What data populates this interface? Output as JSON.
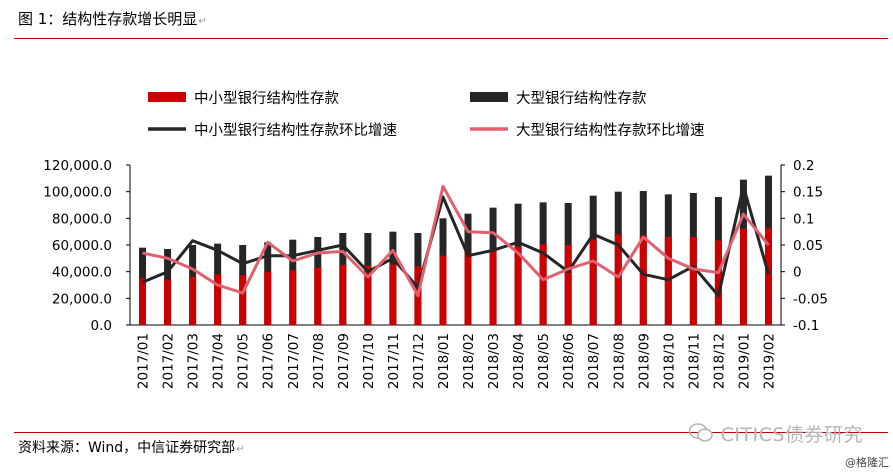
{
  "header": {
    "title": "图 1：结构性存款增长明显"
  },
  "footer": {
    "source": "资料来源：Wind，中信证券研究部",
    "watermark": "CITICS债券研究",
    "brand": "@格隆汇"
  },
  "chart_data": {
    "type": "bar",
    "categories": [
      "2017/01",
      "2017/02",
      "2017/03",
      "2017/04",
      "2017/05",
      "2017/06",
      "2017/07",
      "2017/08",
      "2017/09",
      "2017/10",
      "2017/11",
      "2017/12",
      "2018/01",
      "2018/02",
      "2018/03",
      "2018/04",
      "2018/05",
      "2018/06",
      "2018/07",
      "2018/08",
      "2018/09",
      "2018/10",
      "2018/11",
      "2018/12",
      "2019/01",
      "2019/02"
    ],
    "series": [
      {
        "name": "中小型银行结构性存款",
        "type": "bar",
        "axis": "left",
        "color": "#cc0000",
        "values": [
          35000,
          34000,
          36000,
          38000,
          37500,
          40000,
          41000,
          43000,
          45000,
          44500,
          45500,
          44000,
          52000,
          54000,
          56000,
          59000,
          60500,
          60000,
          64000,
          68000,
          67000,
          66000,
          66000,
          63500,
          72000,
          73000
        ]
      },
      {
        "name": "大型银行结构性存款",
        "type": "bar",
        "axis": "left",
        "color": "#262626",
        "values": [
          58000,
          57000,
          60000,
          61000,
          60000,
          62000,
          64000,
          66000,
          69000,
          69000,
          70000,
          69000,
          80000,
          83500,
          88000,
          91000,
          92000,
          91500,
          97000,
          100000,
          100500,
          98000,
          99000,
          96000,
          109000,
          112000
        ]
      },
      {
        "name": "中小型银行结构性存款环比增速",
        "type": "line",
        "axis": "right",
        "color": "#262626",
        "values": [
          -0.02,
          0.0,
          0.058,
          0.04,
          0.015,
          0.03,
          0.03,
          0.04,
          0.05,
          0.0,
          0.025,
          -0.03,
          0.14,
          0.03,
          0.04,
          0.055,
          0.035,
          0.0,
          0.07,
          0.05,
          -0.005,
          -0.015,
          0.01,
          -0.045,
          0.16,
          -0.005
        ]
      },
      {
        "name": "大型银行结构性存款环比增速",
        "type": "line",
        "axis": "right",
        "color": "#e06070",
        "values": [
          0.035,
          0.025,
          0.005,
          -0.025,
          -0.04,
          0.055,
          0.02,
          0.035,
          0.038,
          -0.01,
          0.04,
          -0.045,
          0.16,
          0.075,
          0.073,
          0.035,
          -0.015,
          0.005,
          0.02,
          -0.01,
          0.065,
          0.025,
          0.005,
          -0.002,
          0.108,
          0.05
        ]
      }
    ],
    "yleft": {
      "min": 0,
      "max": 120000,
      "ticks": [
        "0.0",
        "20,000.0",
        "40,000.0",
        "60,000.0",
        "80,000.0",
        "100,000.0",
        "120,000.0"
      ]
    },
    "yright": {
      "min": -0.1,
      "max": 0.2,
      "ticks": [
        "-0.1",
        "-0.05",
        "0",
        "0.05",
        "0.1",
        "0.15",
        "0.2"
      ]
    },
    "legend": [
      {
        "label": "中小型银行结构性存款",
        "kind": "bar",
        "color": "#cc0000"
      },
      {
        "label": "大型银行结构性存款",
        "kind": "bar",
        "color": "#262626"
      },
      {
        "label": "中小型银行结构性存款环比增速",
        "kind": "line",
        "color": "#262626"
      },
      {
        "label": "大型银行结构性存款环比增速",
        "kind": "line",
        "color": "#e06070"
      }
    ],
    "legend_position": "top",
    "grid": false
  }
}
